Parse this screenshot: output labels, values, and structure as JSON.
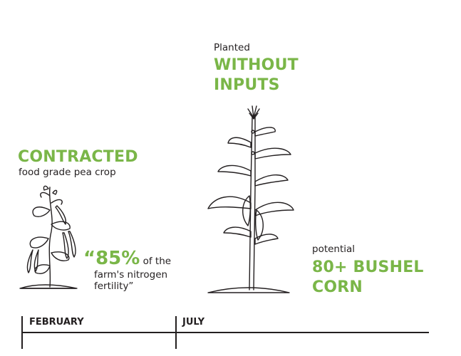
{
  "timeline": {
    "labels": [
      "FEBRUARY",
      "JULY"
    ]
  },
  "pea": {
    "headline": "CONTRACTED",
    "subtitle": "food grade pea crop",
    "quote_stat": "“85%",
    "quote_rest_1": " of the",
    "quote_rest_2": "farm's nitrogen",
    "quote_rest_3": "fertility”"
  },
  "corn": {
    "pre": "Planted",
    "headline_1": "WITHOUT",
    "headline_2": "INPUTS",
    "result_pre": "potential",
    "result_1": "80+ BUSHEL",
    "result_2": "CORN"
  },
  "colors": {
    "accent": "#7ab648",
    "ink": "#231f20"
  }
}
